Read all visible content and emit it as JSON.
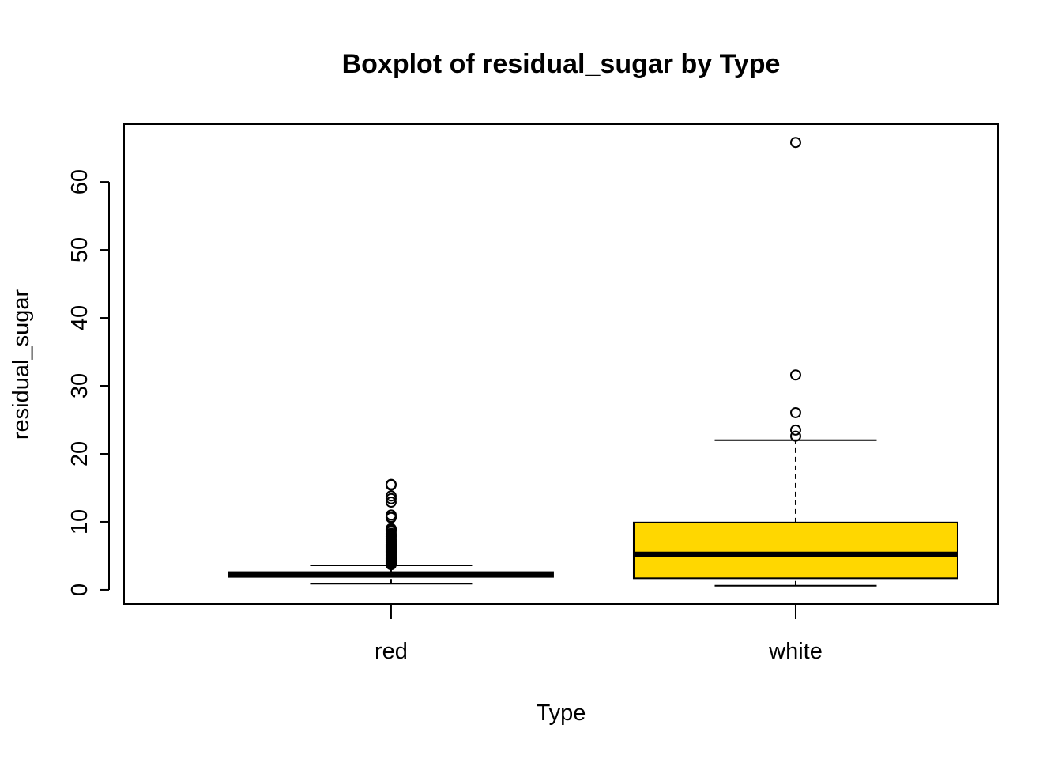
{
  "chart_data": {
    "type": "boxplot",
    "title": "Boxplot of residual_sugar by Type",
    "xlabel": "Type",
    "ylabel": "residual_sugar",
    "categories": [
      "red",
      "white"
    ],
    "ylim": [
      -2.1,
      68.5
    ],
    "yticks": [
      0,
      10,
      20,
      30,
      40,
      50,
      60
    ],
    "grid": false,
    "legend": "none",
    "boxes": [
      {
        "category": "red",
        "whisker_low": 0.9,
        "q1": 1.9,
        "median": 2.2,
        "q3": 2.6,
        "whisker_high": 3.6,
        "fill": "#FFD700",
        "outliers": [
          3.7,
          3.8,
          3.9,
          4.0,
          4.1,
          4.2,
          4.3,
          4.4,
          4.5,
          4.6,
          4.7,
          4.8,
          5.0,
          5.1,
          5.2,
          5.4,
          5.5,
          5.6,
          5.7,
          5.8,
          5.9,
          6.0,
          6.1,
          6.2,
          6.3,
          6.4,
          6.5,
          6.6,
          6.7,
          6.9,
          7.0,
          7.2,
          7.3,
          7.5,
          7.8,
          7.9,
          8.1,
          8.3,
          8.6,
          8.8,
          8.9,
          9.0,
          10.6,
          10.7,
          11.0,
          12.9,
          13.4,
          13.8,
          15.4,
          15.5
        ]
      },
      {
        "category": "white",
        "whisker_low": 0.6,
        "q1": 1.7,
        "median": 5.2,
        "q3": 9.9,
        "whisker_high": 22.0,
        "fill": "#FFD700",
        "outliers": [
          22.6,
          23.5,
          26.05,
          31.6,
          65.8
        ]
      }
    ]
  }
}
